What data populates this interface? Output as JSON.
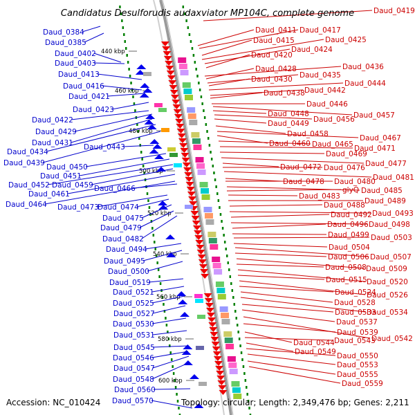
{
  "title": "Candidatus Desulforudis audaxviator MP104C, complete genome",
  "footer": {
    "accession": "Accession: NC_010424",
    "summary": "Topology: circular; Length: 2,349,476 bp; Genes: 2,211"
  },
  "colors": {
    "left": "#0000cc",
    "right": "#cc0000",
    "backbone": "#999999",
    "gc": "#008000"
  },
  "ticks": [
    "440 kbp",
    "460 kbp",
    "480 kbp",
    "500 kbp",
    "520 kbp",
    "540 kbp",
    "560 kbp",
    "580 kbp",
    "600 kbp"
  ],
  "left_labels": [
    "Daud_0384",
    "Daud_0385",
    "Daud_0402",
    "Daud_0403",
    "Daud_0413",
    "Daud_0416",
    "Daud_0421",
    "Daud_0423",
    "Daud_0422",
    "Daud_0429",
    "Daud_0431",
    "Daud_0434",
    "Daud_0439",
    "Daud_0443",
    "Daud_0450",
    "Daud_0451",
    "Daud_0452",
    "Daud_0459",
    "Daud_0461",
    "Daud_0464",
    "Daud_0466",
    "Daud_0473",
    "Daud_0474",
    "Daud_0475",
    "Daud_0479",
    "Daud_0482",
    "Daud_0494",
    "Daud_0495",
    "Daud_0500",
    "Daud_0519",
    "Daud_0521",
    "Daud_0525",
    "Daud_0527",
    "Daud_0530",
    "Daud_0531",
    "Daud_0545",
    "Daud_0546",
    "Daud_0547",
    "Daud_0548",
    "Daud_0560",
    "Daud_0570"
  ],
  "right_labels": [
    "Daud_0419",
    "Daud_0411",
    "Daud_0417",
    "Daud_0415",
    "Daud_0425",
    "Daud_0424",
    "Daud_0420",
    "Daud_0436",
    "Daud_0428",
    "Daud_0435",
    "Daud_0430",
    "Daud_0444",
    "Daud_0442",
    "Daud_0438",
    "Daud_0446",
    "Daud_0457",
    "Daud_0448",
    "Daud_0456",
    "Daud_0449",
    "Daud_0458",
    "Daud_0467",
    "Daud_0460",
    "Daud_0465",
    "Daud_0471",
    "Daud_0469",
    "Daud_0477",
    "Daud_0472",
    "Daud_0476",
    "Daud_0481",
    "Daud_0478",
    "Daud_0480",
    "Daud_0485",
    "glyQ",
    "Daud_0483",
    "Daud_0489",
    "Daud_0488",
    "Daud_0493",
    "Daud_0492",
    "Daud_0498",
    "Daud_0496",
    "Daud_0499",
    "Daud_0503",
    "Daud_0504",
    "Daud_0507",
    "Daud_0506",
    "Daud_0509",
    "Daud_0508",
    "Daud_0520",
    "Daud_0515",
    "Daud_0526",
    "Daud_0524",
    "Daud_0528",
    "Daud_0534",
    "Daud_0533",
    "Daud_0537",
    "Daud_0542",
    "Daud_0539",
    "Daud_0544",
    "Daud_0543",
    "Daud_0549",
    "Daud_0550",
    "Daud_0553",
    "Daud_0555",
    "Daud_0559"
  ]
}
